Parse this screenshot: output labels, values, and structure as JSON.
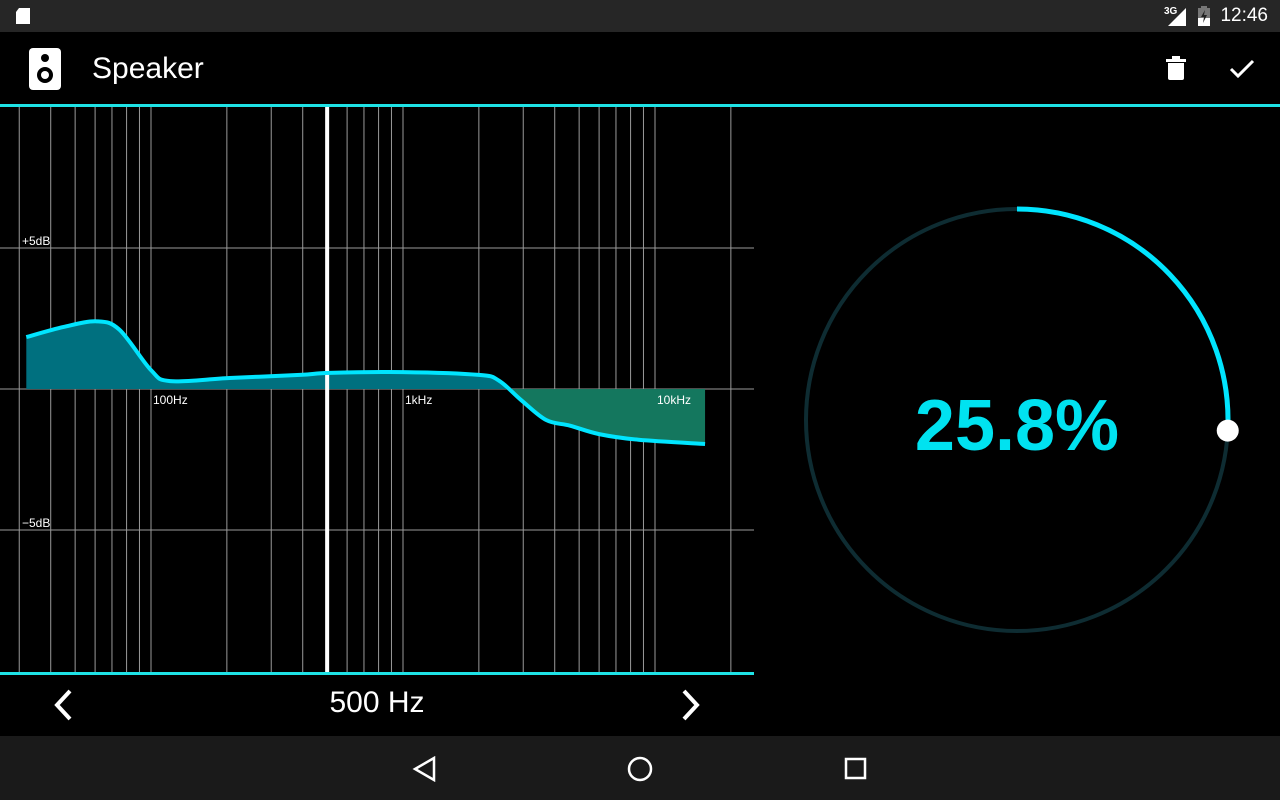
{
  "status_bar": {
    "time": "12:46",
    "network": "3G",
    "icons": [
      "sd-card-icon",
      "signal-icon",
      "battery-charging-icon"
    ]
  },
  "app_bar": {
    "title": "Speaker",
    "icons": [
      "speaker-icon",
      "delete-icon",
      "check-icon"
    ]
  },
  "colors": {
    "accent": "#1ee3e6",
    "curve": "#00e5ff",
    "positive_fill": "#00707f",
    "negative_fill": "#14775e",
    "gauge_track": "#0e2c32"
  },
  "chart_data": {
    "type": "area",
    "x_scale": "log",
    "xlim": [
      30,
      20000
    ],
    "ylim": [
      -10,
      10
    ],
    "x_gridlines": [
      30,
      40,
      50,
      60,
      70,
      80,
      90,
      100,
      200,
      300,
      400,
      500,
      600,
      700,
      800,
      900,
      1000,
      2000,
      3000,
      4000,
      5000,
      6000,
      7000,
      8000,
      9000,
      10000,
      20000
    ],
    "x_tick_labels": [
      {
        "value": 100,
        "label": "100Hz"
      },
      {
        "value": 1000,
        "label": "1kHz"
      },
      {
        "value": 10000,
        "label": "10kHz"
      }
    ],
    "y_tick_labels": [
      {
        "value": 5,
        "label": "+5dB"
      },
      {
        "value": -5,
        "label": "−5dB"
      }
    ],
    "selected_frequency": 500,
    "points": [
      [
        32,
        1.84
      ],
      [
        45,
        2.2
      ],
      [
        61,
        2.4
      ],
      [
        75,
        2.1
      ],
      [
        100,
        0.67
      ],
      [
        119,
        0.28
      ],
      [
        205,
        0.39
      ],
      [
        390,
        0.5
      ],
      [
        512,
        0.57
      ],
      [
        1000,
        0.6
      ],
      [
        2000,
        0.5
      ],
      [
        2400,
        0.3
      ],
      [
        2950,
        -0.4
      ],
      [
        3700,
        -1.1
      ],
      [
        4600,
        -1.3
      ],
      [
        6000,
        -1.6
      ],
      [
        8600,
        -1.8
      ],
      [
        15800,
        -1.95
      ]
    ]
  },
  "selector": {
    "label": "500 Hz",
    "prev": "chevron-left-icon",
    "next": "chevron-right-icon"
  },
  "gauge": {
    "value_text": "25.8%",
    "fraction": 0.258
  },
  "nav": [
    "back-icon",
    "home-icon",
    "recents-icon"
  ]
}
